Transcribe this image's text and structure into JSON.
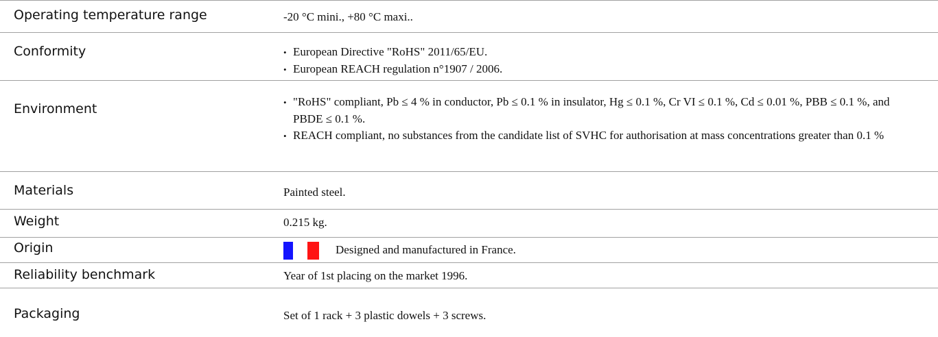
{
  "table": {
    "rows": [
      {
        "label": "Operating temperature range",
        "value": "-20 °C mini., +80 °C maxi.."
      },
      {
        "label": "Conformity",
        "items": [
          "European Directive \"RoHS\" 2011/65/EU.",
          "European REACH regulation n°1907 / 2006."
        ]
      },
      {
        "label": "Environment",
        "items": [
          "\"RoHS\" compliant, Pb ≤ 4 % in conductor, Pb ≤ 0.1 % in insulator, Hg ≤ 0.1 %, Cr VI ≤ 0.1 %, Cd ≤ 0.01 %, PBB ≤ 0.1 %, and PBDE ≤ 0.1 %.",
          "REACH compliant, no substances from the candidate list of SVHC for authorisation at mass concentrations greater than 0.1 %"
        ]
      },
      {
        "label": "Materials",
        "value": "Painted steel."
      },
      {
        "label": "Weight",
        "value": "0.215 kg."
      },
      {
        "label": "Origin",
        "value": "Designed and manufactured in France.",
        "flag": true
      },
      {
        "label": "Reliability benchmark",
        "value": "Year of 1st placing on the market 1996."
      },
      {
        "label": "Packaging",
        "value": "Set of 1 rack + 3 plastic dowels + 3 screws."
      }
    ]
  }
}
